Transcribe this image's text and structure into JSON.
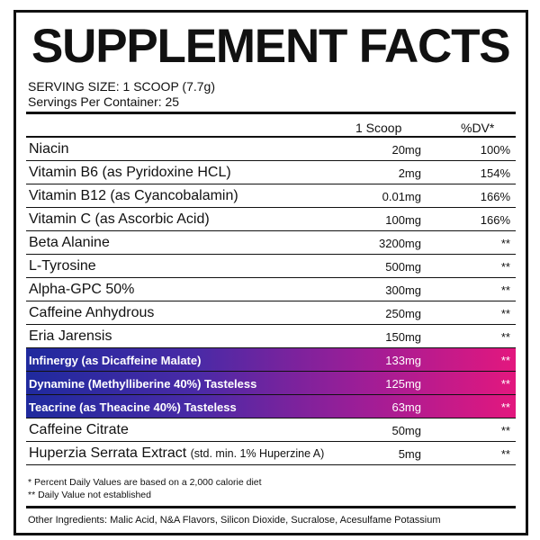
{
  "header": {
    "title": "SUPPLEMENT FACTS",
    "serving_size": "SERVING SIZE: 1 SCOOP (7.7g)",
    "servings_per_container": "Servings Per Container: 25"
  },
  "table": {
    "columns": [
      "1 Scoop",
      "%DV*"
    ],
    "rows": [
      {
        "name": "Niacin",
        "amount": "20mg",
        "dv": "100%"
      },
      {
        "name": "Vitamin B6 (as Pyridoxine HCL)",
        "amount": "2mg",
        "dv": "154%"
      },
      {
        "name": "Vitamin B12 (as Cyancobalamin)",
        "amount": "0.01mg",
        "dv": "166%"
      },
      {
        "name": "Vitamin C (as Ascorbic Acid)",
        "amount": "100mg",
        "dv": "166%"
      },
      {
        "name": "Beta Alanine",
        "amount": "3200mg",
        "dv": "**"
      },
      {
        "name": "L-Tyrosine",
        "amount": "500mg",
        "dv": "**"
      },
      {
        "name": "Alpha-GPC 50%",
        "amount": "300mg",
        "dv": "**"
      },
      {
        "name": "Caffeine Anhydrous",
        "amount": "250mg",
        "dv": "**"
      },
      {
        "name": "Eria Jarensis",
        "amount": "150mg",
        "dv": "**"
      },
      {
        "name": "Infinergy (as Dicaffeine Malate)",
        "amount": "133mg",
        "dv": "**",
        "highlight": true
      },
      {
        "name": "Dynamine (Methylliberine 40%) Tasteless",
        "amount": "125mg",
        "dv": "**",
        "highlight": true
      },
      {
        "name": "Teacrine (as Theacine 40%) Tasteless",
        "amount": "63mg",
        "dv": "**",
        "highlight": true
      },
      {
        "name": "Caffeine Citrate",
        "amount": "50mg",
        "dv": "**"
      },
      {
        "name": "Huperzia Serrata Extract",
        "detail": "(std. min. 1% Huperzine A)",
        "amount": "5mg",
        "dv": "**"
      }
    ]
  },
  "footnotes": [
    "* Percent Daily Values are based on a 2,000 calorie diet",
    "** Daily Value not established"
  ],
  "other_ingredients": "Other Ingredients: Malic Acid, N&A Flavors, Silicon Dioxide, Sucralose, Acesulfame Potassium"
}
